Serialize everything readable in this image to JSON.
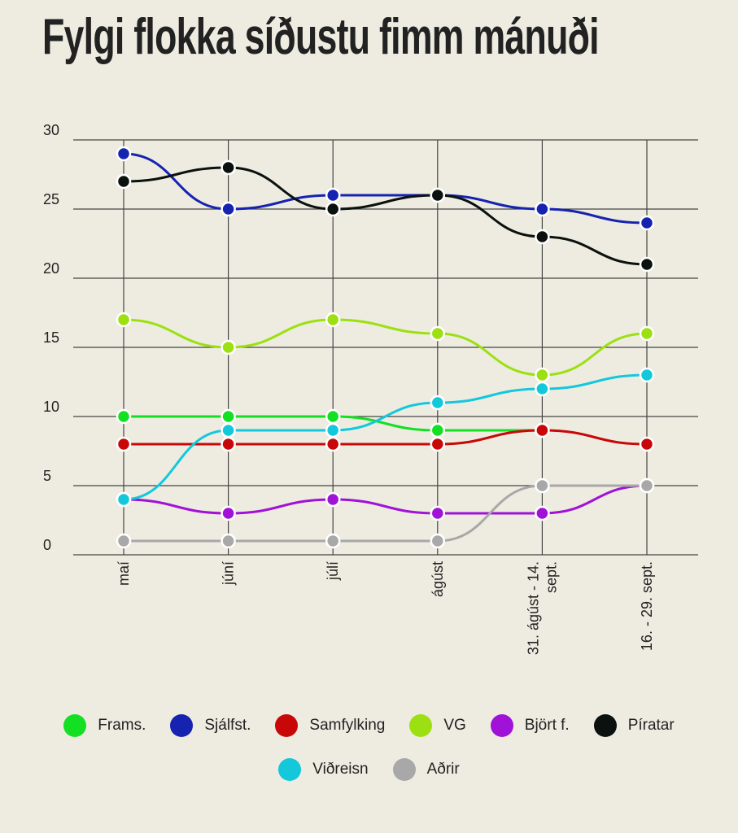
{
  "title": "Fylgi flokka síðustu fimm mánuði",
  "chart_data": {
    "type": "line",
    "title": "Fylgi flokka síðustu fimm mánuði",
    "categories": [
      "maí",
      "júní",
      "júlí",
      "ágúst",
      "31. ágúst - 14. sept.",
      "16. - 29. sept."
    ],
    "yticks": [
      0,
      5,
      10,
      15,
      20,
      25,
      30
    ],
    "ylim": [
      0,
      30
    ],
    "grid": true,
    "legend_position": "bottom",
    "series": [
      {
        "name": "Frams.",
        "color": "#13e022",
        "values": [
          10,
          10,
          10,
          9,
          9,
          null
        ]
      },
      {
        "name": "Sjálfst.",
        "color": "#1523b0",
        "values": [
          29,
          25,
          26,
          26,
          25,
          24
        ]
      },
      {
        "name": "Samfylking",
        "color": "#c80808",
        "values": [
          8,
          8,
          8,
          8,
          9,
          8
        ]
      },
      {
        "name": "VG",
        "color": "#9ce012",
        "values": [
          17,
          15,
          17,
          16,
          13,
          16
        ]
      },
      {
        "name": "Björt f.",
        "color": "#a012d8",
        "values": [
          4,
          3,
          4,
          3,
          3,
          5
        ]
      },
      {
        "name": "Píratar",
        "color": "#0b110e",
        "values": [
          27,
          28,
          25,
          26,
          23,
          21
        ]
      },
      {
        "name": "Viðreisn",
        "color": "#14c8dc",
        "values": [
          4,
          9,
          9,
          11,
          12,
          13
        ]
      },
      {
        "name": "Aðrir",
        "color": "#a8a8a8",
        "values": [
          1,
          1,
          1,
          1,
          5,
          5
        ]
      }
    ]
  }
}
